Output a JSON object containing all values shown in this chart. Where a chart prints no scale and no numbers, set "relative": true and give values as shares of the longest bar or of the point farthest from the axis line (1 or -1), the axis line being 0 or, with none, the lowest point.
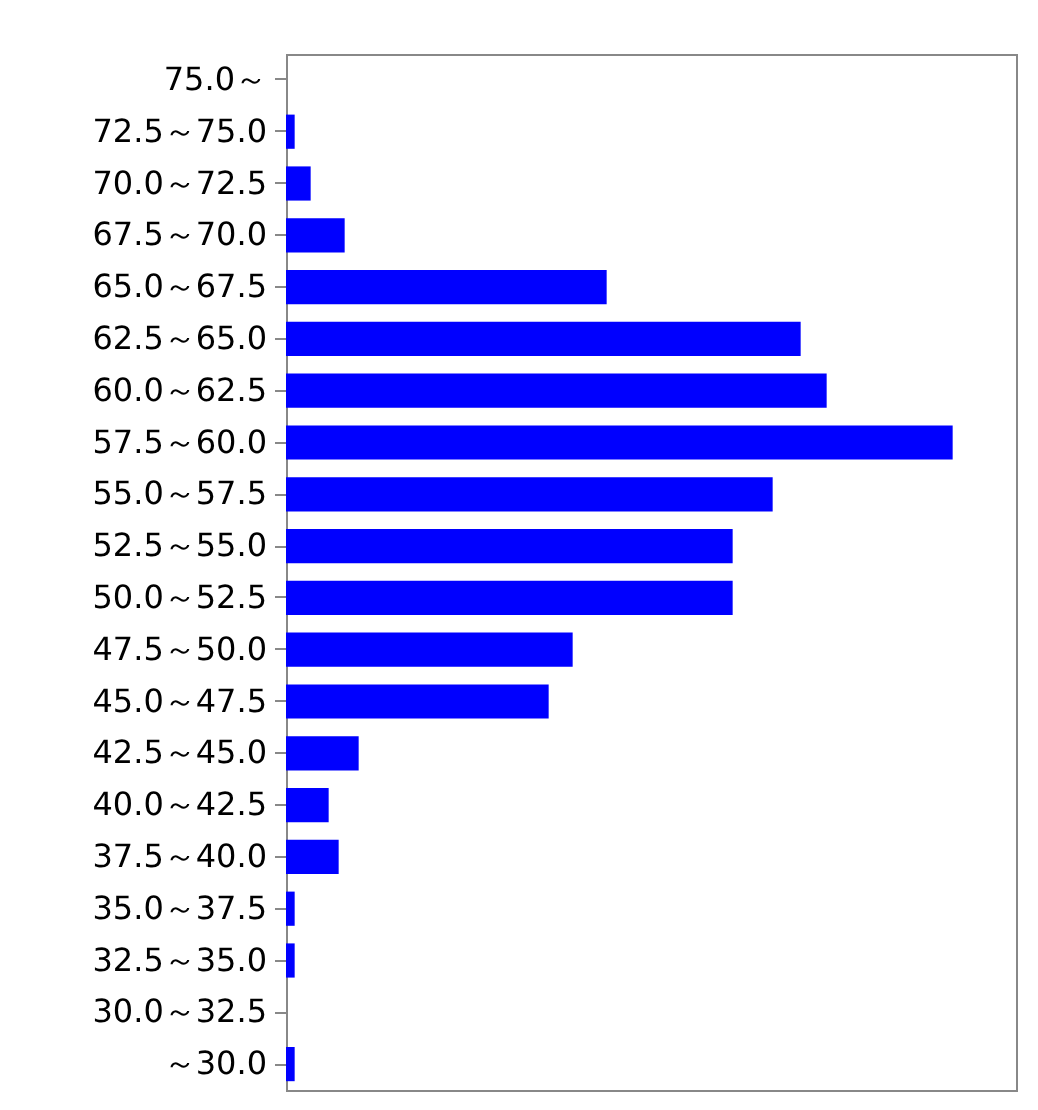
{
  "chart_data": {
    "type": "bar",
    "orientation": "horizontal",
    "relative": true,
    "color": "#0000ff",
    "categories": [
      "75.0～",
      "72.5～75.0",
      "70.0～72.5",
      "67.5～70.0",
      "65.0～67.5",
      "62.5～65.0",
      "60.0～62.5",
      "57.5～60.0",
      "55.0～57.5",
      "52.5～55.0",
      "50.0～52.5",
      "47.5～50.0",
      "45.0～47.5",
      "42.5～45.0",
      "40.0～42.5",
      "37.5～40.0",
      "35.0～37.5",
      "32.5～35.0",
      "30.0～32.5",
      "～30.0"
    ],
    "values": [
      0,
      0.013,
      0.037,
      0.088,
      0.481,
      0.772,
      0.811,
      1,
      0.73,
      0.67,
      0.67,
      0.43,
      0.394,
      0.109,
      0.064,
      0.079,
      0.013,
      0.013,
      0,
      0.013
    ]
  }
}
